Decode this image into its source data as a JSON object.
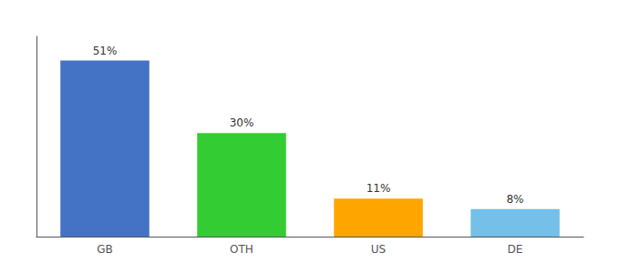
{
  "chart_data": {
    "type": "bar",
    "categories": [
      "GB",
      "OTH",
      "US",
      "DE"
    ],
    "values": [
      51,
      30,
      11,
      8
    ],
    "value_labels": [
      "51%",
      "30%",
      "11%",
      "8%"
    ],
    "colors": [
      "#4472C4",
      "#33CC33",
      "#FFA500",
      "#74C0E8"
    ],
    "ylim": [
      0,
      58
    ],
    "yticks": [],
    "data_labels": true,
    "tick_labels": "x",
    "grid": false
  }
}
